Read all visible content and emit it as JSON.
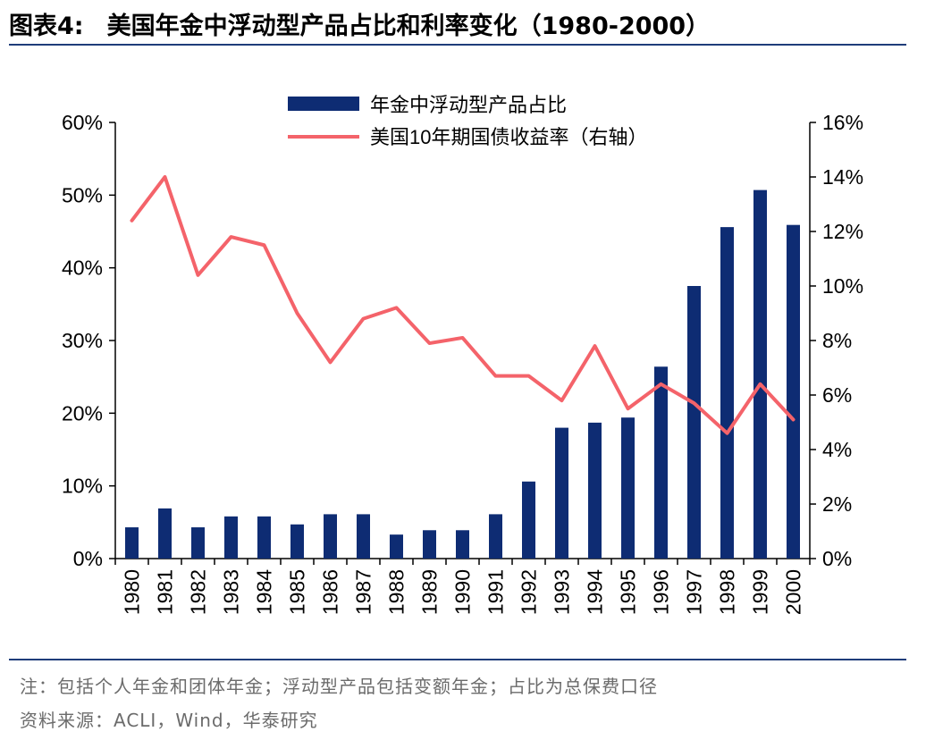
{
  "header": {
    "label": "图表4:",
    "title": "美国年金中浮动型产品占比和利率变化（1980-2000）"
  },
  "footer": {
    "note": "注：包括个人年金和团体年金；浮动型产品包括变额年金；占比为总保费口径",
    "source": "资料来源：ACLI，Wind，华泰研究"
  },
  "colors": {
    "bar": "#0e2c73",
    "line": "#f4636a",
    "rule": "#1f3d7a"
  },
  "chart_data": {
    "type": "bar",
    "categories": [
      "1980",
      "1981",
      "1982",
      "1983",
      "1984",
      "1985",
      "1986",
      "1987",
      "1988",
      "1989",
      "1990",
      "1991",
      "1992",
      "1993",
      "1994",
      "1995",
      "1996",
      "1997",
      "1998",
      "1999",
      "2000"
    ],
    "series": [
      {
        "name": "年金中浮动型产品占比",
        "type": "bar",
        "axis": "left",
        "values": [
          4.3,
          6.9,
          4.3,
          5.8,
          5.8,
          4.7,
          6.1,
          6.1,
          3.3,
          3.9,
          3.9,
          6.1,
          10.6,
          18.0,
          18.7,
          19.4,
          26.4,
          37.5,
          45.6,
          50.7,
          45.9
        ]
      },
      {
        "name": "美国10年期国债收益率（右轴）",
        "type": "line",
        "axis": "right",
        "values": [
          12.4,
          14.0,
          10.4,
          11.8,
          11.5,
          9.0,
          7.2,
          8.8,
          9.2,
          7.9,
          8.1,
          6.7,
          6.7,
          5.8,
          7.8,
          5.5,
          6.4,
          5.7,
          4.6,
          6.4,
          5.1
        ]
      }
    ],
    "y_left": {
      "ylim": [
        0,
        60
      ],
      "ticks": [
        "0%",
        "10%",
        "20%",
        "30%",
        "40%",
        "50%",
        "60%"
      ]
    },
    "y_right": {
      "ylim": [
        0,
        16
      ],
      "ticks": [
        "0%",
        "2%",
        "4%",
        "6%",
        "8%",
        "10%",
        "12%",
        "14%",
        "16%"
      ]
    },
    "legend_position": "top-center",
    "grid": false
  }
}
